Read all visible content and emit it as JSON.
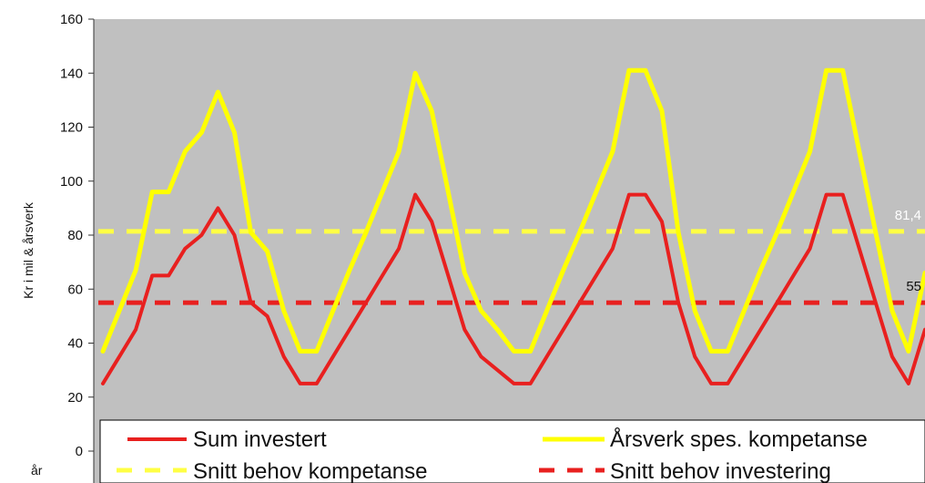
{
  "chart_data": {
    "type": "line",
    "title": "",
    "xlabel": "år",
    "ylabel": "Kr i mil & årsverk",
    "ylim": [
      0,
      160
    ],
    "y_ticks": [
      "0",
      "20",
      "40",
      "60",
      "80",
      "100",
      "120",
      "140",
      "160"
    ],
    "grid": false,
    "plot_background": "#c0c0c0",
    "legend_position": "bottom",
    "series": [
      {
        "name": "Sum investert",
        "color": "#e8201f",
        "style": "solid",
        "values": [
          25,
          35,
          45,
          65,
          65,
          75,
          80,
          90,
          80,
          55,
          50,
          35,
          25,
          25,
          35,
          45,
          55,
          65,
          75,
          95,
          85,
          65,
          45,
          35,
          30,
          25,
          25,
          35,
          45,
          55,
          65,
          75,
          95,
          95,
          85,
          55,
          35,
          25,
          25,
          35,
          45,
          55,
          65,
          75,
          95,
          95,
          75,
          55,
          35,
          25,
          45
        ]
      },
      {
        "name": "Årsverk spes. kompetanse",
        "color": "#ffff00",
        "style": "solid",
        "values": [
          37,
          52,
          67,
          96,
          96,
          111,
          118,
          133,
          118,
          81,
          74,
          52,
          37,
          37,
          52,
          67,
          81,
          96,
          111,
          140,
          126,
          96,
          66,
          52,
          45,
          37,
          37,
          52,
          67,
          81,
          96,
          111,
          141,
          141,
          126,
          81,
          52,
          37,
          37,
          52,
          67,
          81,
          96,
          111,
          141,
          141,
          111,
          81,
          52,
          37,
          66
        ]
      },
      {
        "name": "Snitt behov kompetanse",
        "color": "#ffff44",
        "style": "dashed",
        "constant": 81.4,
        "label": "81,4"
      },
      {
        "name": "Snitt behov investering",
        "color": "#e8201f",
        "style": "dashed",
        "constant": 55,
        "label": "55"
      }
    ]
  }
}
